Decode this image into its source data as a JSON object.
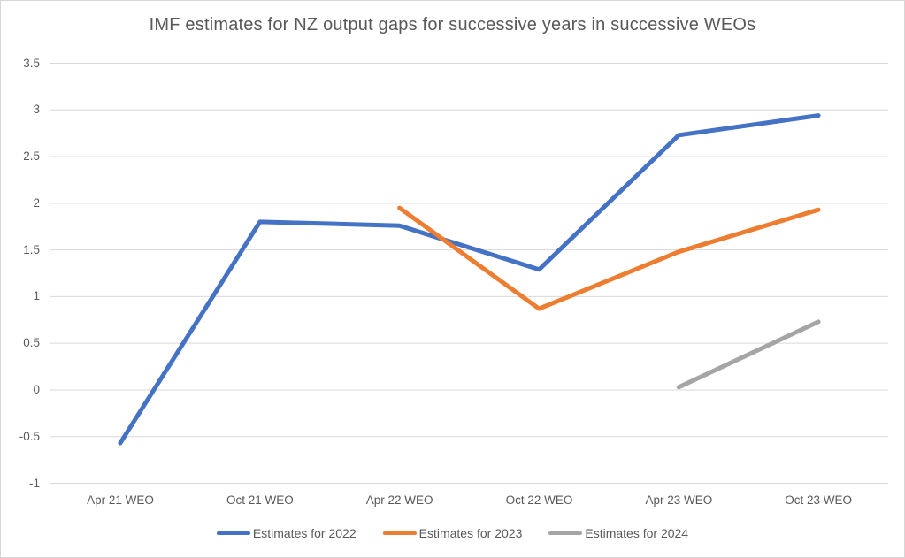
{
  "chart_data": {
    "type": "line",
    "title": "IMF estimates for NZ output gaps for successive years in successive WEOs",
    "categories": [
      "Apr 21 WEO",
      "Oct 21 WEO",
      "Apr 22 WEO",
      "Oct 22 WEO",
      "Apr 23 WEO",
      "Oct 23 WEO"
    ],
    "series": [
      {
        "name": "Estimates for 2022",
        "color": "#4472C4",
        "values": [
          -0.57,
          1.8,
          1.76,
          1.29,
          2.73,
          2.94
        ]
      },
      {
        "name": "Estimates for 2023",
        "color": "#ED7D31",
        "values": [
          null,
          null,
          1.95,
          0.87,
          1.48,
          1.93
        ]
      },
      {
        "name": "Estimates for 2024",
        "color": "#A5A5A5",
        "values": [
          null,
          null,
          null,
          null,
          0.03,
          0.73
        ]
      }
    ],
    "ylim": [
      -1,
      3.5
    ],
    "y_tick_step": 0.5,
    "y_tick_labels": [
      "3.5",
      "3",
      "2.5",
      "2",
      "1.5",
      "1",
      "0.5",
      "0",
      "-0.5",
      "-1"
    ],
    "grid": true,
    "gridline_color": "#D9D9D9",
    "text_color": "#595959",
    "legend_position": "bottom"
  }
}
